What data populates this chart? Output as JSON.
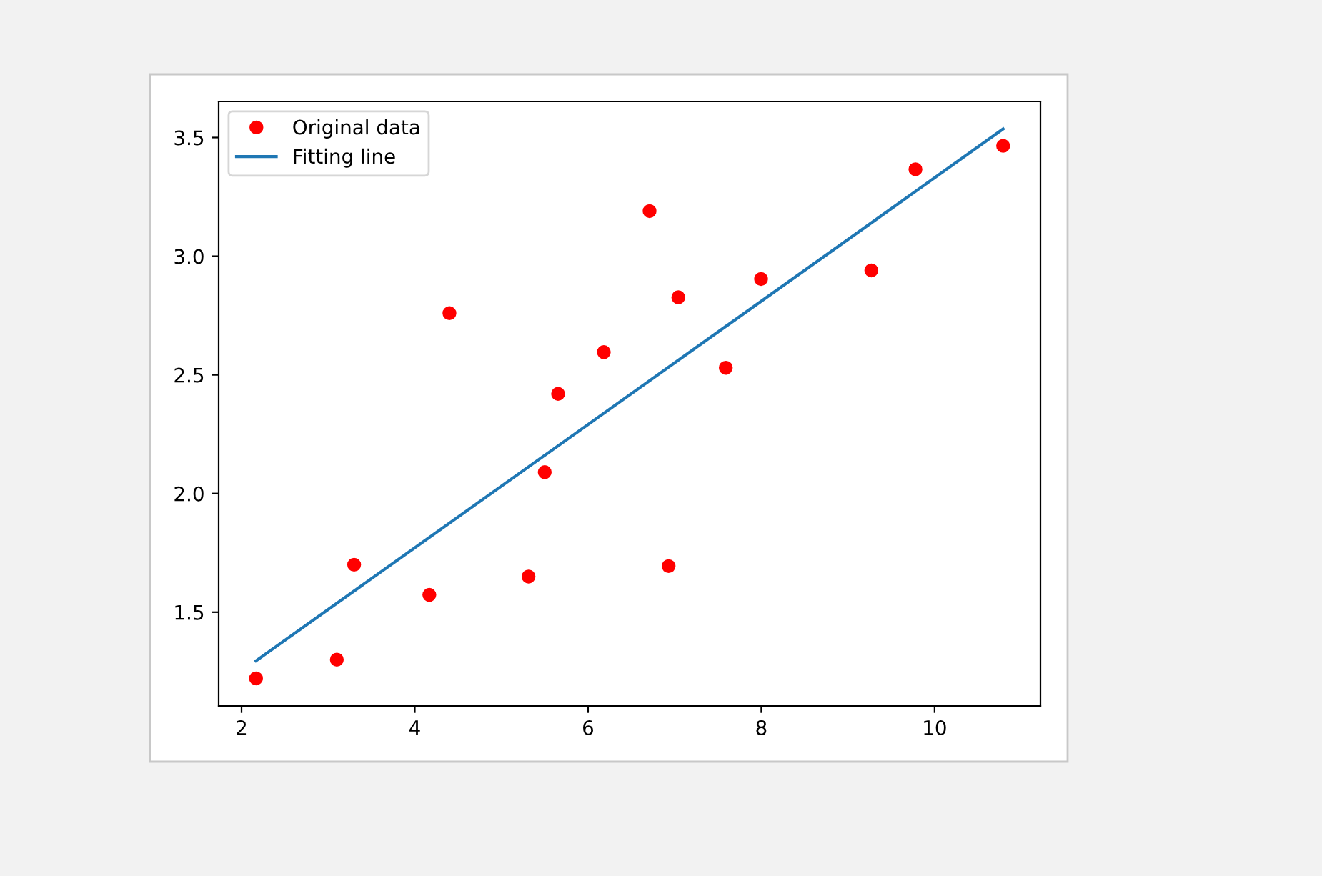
{
  "chart_data": {
    "type": "scatter",
    "series": [
      {
        "name": "Original data",
        "color": "#ff0000",
        "marker": "circle",
        "x": [
          3.3,
          4.4,
          5.5,
          6.71,
          6.93,
          4.168,
          9.779,
          6.182,
          7.59,
          2.167,
          7.042,
          10.791,
          5.313,
          7.997,
          5.654,
          9.27,
          3.1
        ],
        "values": [
          1.7,
          2.76,
          2.09,
          3.19,
          1.694,
          1.573,
          3.366,
          2.596,
          2.53,
          1.221,
          2.827,
          3.465,
          1.65,
          2.904,
          2.42,
          2.94,
          1.3
        ]
      },
      {
        "name": "Fitting line",
        "type": "line",
        "color": "#1f77b4",
        "marker": "none",
        "line_style": "solid",
        "x": [
          2.167,
          10.791
        ],
        "values": [
          1.295,
          3.536
        ]
      }
    ],
    "xlim": [
      1.736,
      11.222
    ],
    "ylim": [
      1.105,
      3.652
    ],
    "xticks": [
      2,
      4,
      6,
      8,
      10
    ],
    "yticks": [
      1.5,
      {
        "value": 2,
        "label": "2.0"
      },
      2.5,
      {
        "value": 3,
        "label": "3.0"
      },
      3.5
    ],
    "grid": false,
    "legend": "top left"
  }
}
